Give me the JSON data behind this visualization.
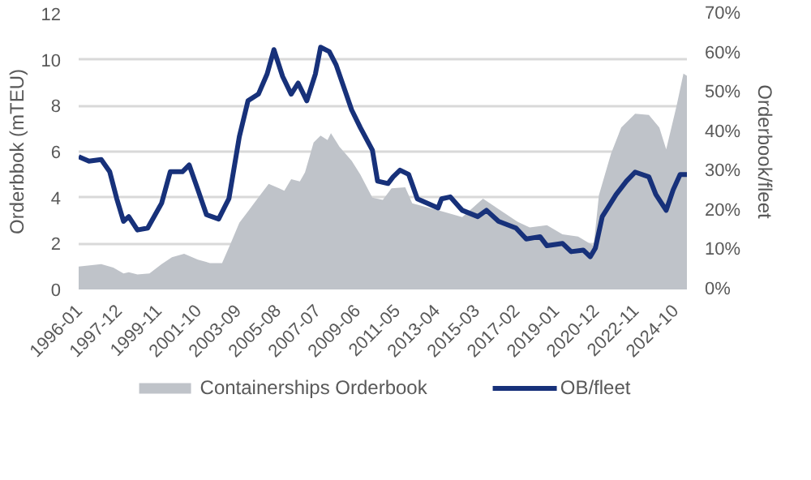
{
  "chart_data": {
    "type": "area",
    "xlabel": null,
    "ylabel": "Orderbbok (mTEU)",
    "y2label": "Orderbook/fleet",
    "xlim": [
      "1996-01",
      "2025-05"
    ],
    "xticks": [
      "1996-01",
      "1997-12",
      "1999-11",
      "2001-10",
      "2003-09",
      "2005-08",
      "2007-07",
      "2009-06",
      "2011-05",
      "2013-04",
      "2015-03",
      "2017-02",
      "2019-01",
      "2020-12",
      "2022-11",
      "2024-10"
    ],
    "ylim": [
      0,
      12
    ],
    "yticks": [
      0,
      2,
      4,
      6,
      8,
      10,
      12
    ],
    "y2lim": [
      0,
      70
    ],
    "y2ticks": [
      {
        "value": 0,
        "label": "0%"
      },
      {
        "value": 10,
        "label": "10%"
      },
      {
        "value": 20,
        "label": "20%"
      },
      {
        "value": 30,
        "label": "30%"
      },
      {
        "value": 40,
        "label": "40%"
      },
      {
        "value": 50,
        "label": "50%"
      },
      {
        "value": 60,
        "label": "60%"
      },
      {
        "value": 70,
        "label": "70%"
      }
    ],
    "grid": "y",
    "legend": "bottom",
    "series": [
      {
        "name": "Containerships Orderbook",
        "color": "#bfc3c9",
        "x": [
          "1996-01",
          "1997-02",
          "1997-09",
          "1998-03",
          "1998-06",
          "1998-11",
          "1999-06",
          "2000-01",
          "2000-07",
          "2001-02",
          "2001-10",
          "2002-05",
          "2002-12",
          "2003-05",
          "2003-10",
          "2004-03",
          "2004-07",
          "2005-03",
          "2005-09",
          "2005-12",
          "2006-04",
          "2006-09",
          "2006-12",
          "2007-05",
          "2007-09",
          "2008-01",
          "2008-03",
          "2008-08",
          "2009-03",
          "2009-08",
          "2010-03",
          "2010-09",
          "2011-02",
          "2011-10",
          "2012-02",
          "2013-05",
          "2014-07",
          "2015-07",
          "2016-03",
          "2017-03",
          "2017-10",
          "2018-08",
          "2019-05",
          "2020-02",
          "2020-11",
          "2021-02",
          "2021-09",
          "2022-03",
          "2022-11",
          "2023-07",
          "2024-01",
          "2024-05",
          "2024-11",
          "2025-03",
          "2025-05"
        ],
        "values": [
          1.0,
          1.1,
          0.95,
          0.7,
          0.75,
          0.65,
          0.7,
          1.1,
          1.4,
          1.55,
          1.3,
          1.15,
          1.15,
          2.0,
          2.9,
          3.4,
          3.8,
          4.6,
          4.4,
          4.3,
          4.8,
          4.7,
          5.1,
          6.4,
          6.7,
          6.5,
          6.8,
          6.2,
          5.6,
          5.0,
          4.0,
          3.9,
          4.4,
          4.45,
          3.75,
          3.45,
          3.15,
          3.95,
          3.55,
          2.95,
          2.7,
          2.8,
          2.4,
          2.3,
          1.9,
          4.1,
          5.9,
          7.05,
          7.65,
          7.6,
          7.05,
          6.1,
          8.0,
          9.4,
          9.3
        ]
      },
      {
        "name": "OB/fleet",
        "type": "line",
        "axis": "y2",
        "color": "#17317a",
        "x": [
          "1996-01",
          "1996-07",
          "1997-02",
          "1997-07",
          "1997-11",
          "1998-03",
          "1998-06",
          "1998-11",
          "1999-05",
          "2000-01",
          "2000-06",
          "2001-01",
          "2001-05",
          "2001-10",
          "2002-03",
          "2002-10",
          "2003-04",
          "2003-10",
          "2004-03",
          "2004-09",
          "2005-02",
          "2005-06",
          "2005-11",
          "2006-04",
          "2006-08",
          "2007-01",
          "2007-06",
          "2007-09",
          "2008-02",
          "2008-06",
          "2009-03",
          "2009-08",
          "2010-03",
          "2010-06",
          "2010-12",
          "2011-03",
          "2011-07",
          "2011-12",
          "2012-05",
          "2013-05",
          "2013-07",
          "2013-12",
          "2014-07",
          "2015-04",
          "2015-09",
          "2016-04",
          "2017-02",
          "2017-08",
          "2018-04",
          "2018-08",
          "2019-05",
          "2019-10",
          "2020-05",
          "2020-09",
          "2020-12",
          "2021-04",
          "2021-12",
          "2022-06",
          "2022-11",
          "2023-07",
          "2023-11",
          "2024-05",
          "2024-09",
          "2025-01",
          "2025-05"
        ],
        "values": [
          33.7,
          32.6,
          33.0,
          29.9,
          23.1,
          17.3,
          18.5,
          15.1,
          15.6,
          21.9,
          29.9,
          29.9,
          31.6,
          25.3,
          19.0,
          17.9,
          23.1,
          38.8,
          47.9,
          49.6,
          54.7,
          60.9,
          54.1,
          49.6,
          52.4,
          47.9,
          54.7,
          61.5,
          60.4,
          57.0,
          45.6,
          41.1,
          35.4,
          27.5,
          26.9,
          28.6,
          30.3,
          29.2,
          23.0,
          20.7,
          23.0,
          23.5,
          20.1,
          18.5,
          20.1,
          17.3,
          15.6,
          12.8,
          13.4,
          11.1,
          11.7,
          9.6,
          10.0,
          8.3,
          10.5,
          18.5,
          24.1,
          27.5,
          29.8,
          28.6,
          24.1,
          20.1,
          25.3,
          29.2,
          29.2
        ]
      }
    ]
  }
}
